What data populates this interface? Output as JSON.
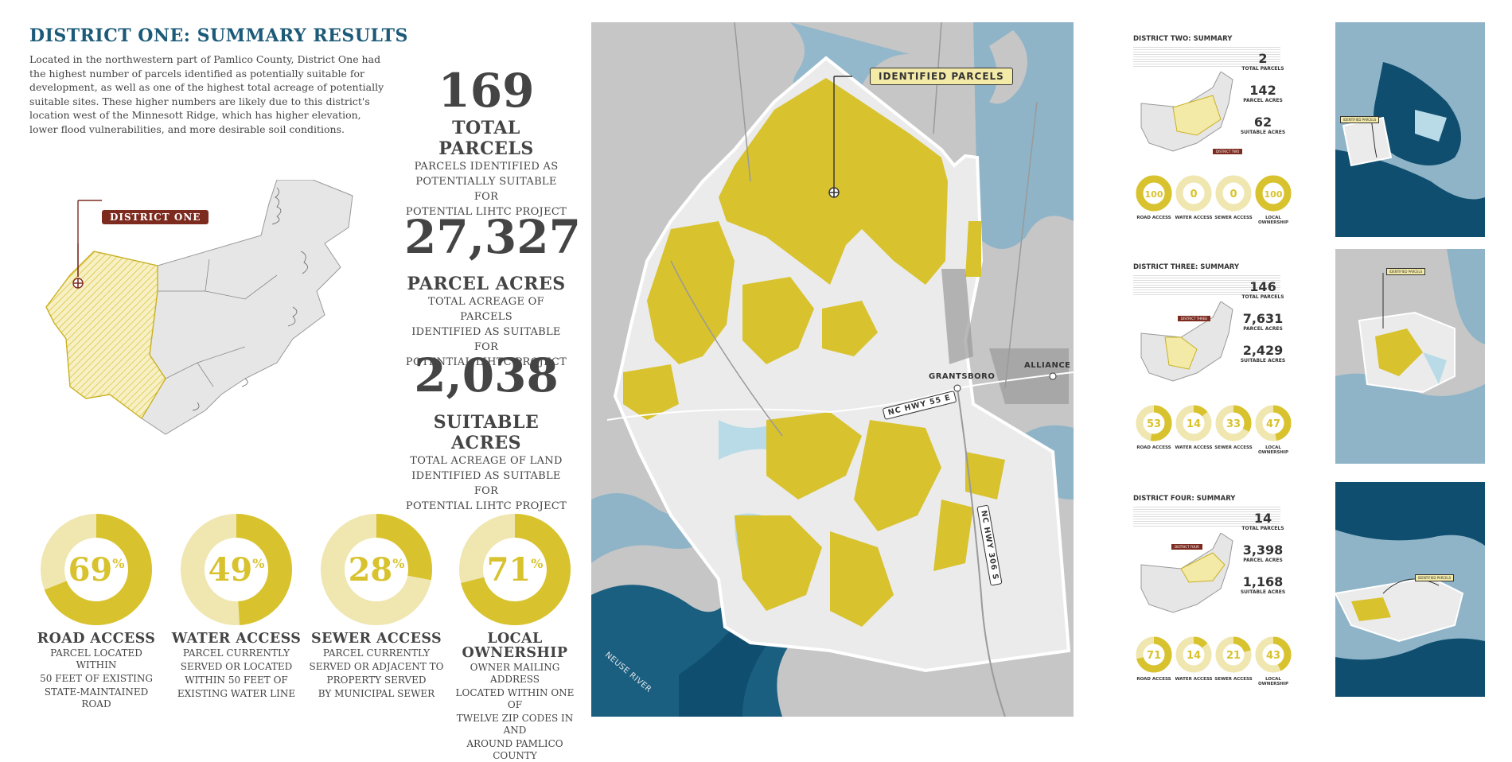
{
  "main": {
    "title": "DISTRICT ONE: SUMMARY RESULTS",
    "intro": "Located in the northwestern part of Pamlico County, District One had the highest number of parcels identified as potentially suitable for development, as well as one of the highest total acreage of potentially suitable sites. These higher numbers are likely due to this district's location west of the Minnesott Ridge, which has higher elevation, lower flood vulnerabilities, and more desirable soil conditions.",
    "locator_label": "DISTRICT ONE"
  },
  "stats": [
    {
      "value": "169",
      "label": "TOTAL PARCELS",
      "sub1": "PARCELS IDENTIFIED AS",
      "sub2": "POTENTIALLY SUITABLE FOR",
      "sub3": "POTENTIAL LIHTC PROJECT"
    },
    {
      "value": "27,327",
      "label": "PARCEL ACRES",
      "sub1": "TOTAL ACREAGE OF PARCELS",
      "sub2": "IDENTIFIED AS SUITABLE FOR",
      "sub3": "POTENTIAL LIHTC PROJECT"
    },
    {
      "value": "2,038",
      "label": "SUITABLE ACRES",
      "sub1": "TOTAL ACREAGE OF LAND",
      "sub2": "IDENTIFIED AS SUITABLE FOR",
      "sub3": "POTENTIAL LIHTC PROJECT"
    }
  ],
  "donuts": [
    {
      "percent": 69,
      "value": "69",
      "unit": "%",
      "label1": "ROAD ACCESS",
      "label2": "",
      "sub1": "PARCEL LOCATED WITHIN",
      "sub2": "50 FEET OF EXISTING",
      "sub3": "STATE-MAINTAINED ROAD",
      "sub4": ""
    },
    {
      "percent": 49,
      "value": "49",
      "unit": "%",
      "label1": "WATER ACCESS",
      "label2": "",
      "sub1": "PARCEL CURRENTLY",
      "sub2": "SERVED OR LOCATED",
      "sub3": "WITHIN 50 FEET OF",
      "sub4": "EXISTING WATER LINE"
    },
    {
      "percent": 28,
      "value": "28",
      "unit": "%",
      "label1": "SEWER ACCESS",
      "label2": "",
      "sub1": "PARCEL CURRENTLY",
      "sub2": "SERVED OR ADJACENT TO",
      "sub3": "PROPERTY SERVED",
      "sub4": "BY MUNICIPAL SEWER"
    },
    {
      "percent": 71,
      "value": "71",
      "unit": "%",
      "label1": "LOCAL",
      "label2": "OWNERSHIP",
      "sub1": "OWNER MAILING ADDRESS",
      "sub2": "LOCATED WITHIN ONE OF",
      "sub3": "TWELVE ZIP CODES IN AND",
      "sub4": "AROUND PAMLICO COUNTY"
    }
  ],
  "map": {
    "callout": "IDENTIFIED PARCELS",
    "towns": [
      "GRANTSBORO",
      "ALLIANCE"
    ],
    "road1": "NC HWY 55 E",
    "road2": "NC HWY 306 S",
    "river": "NEUSE RIVER"
  },
  "colors": {
    "accent": "#d8c22e",
    "accent_light": "#efe6b0",
    "title_blue": "#1b5a78",
    "water_dark": "#0f4e6e",
    "water_light": "#b9dbe8",
    "district_tag": "#7d2a1f"
  },
  "side": [
    {
      "title": "DISTRICT TWO: SUMMARY",
      "tag": "DISTRICT TWO",
      "stats": [
        {
          "value": "2",
          "label": "TOTAL PARCELS"
        },
        {
          "value": "142",
          "label": "PARCEL ACRES"
        },
        {
          "value": "62",
          "label": "SUITABLE ACRES"
        }
      ],
      "donuts": [
        {
          "percent": 100,
          "value": "100"
        },
        {
          "percent": 0,
          "value": "0"
        },
        {
          "percent": 0,
          "value": "0"
        },
        {
          "percent": 100,
          "value": "100"
        }
      ],
      "map_tag": "IDENTIFIED PARCELS"
    },
    {
      "title": "DISTRICT THREE: SUMMARY",
      "tag": "DISTRICT THREE",
      "stats": [
        {
          "value": "146",
          "label": "TOTAL PARCELS"
        },
        {
          "value": "7,631",
          "label": "PARCEL ACRES"
        },
        {
          "value": "2,429",
          "label": "SUITABLE ACRES"
        }
      ],
      "donuts": [
        {
          "percent": 53,
          "value": "53"
        },
        {
          "percent": 14,
          "value": "14"
        },
        {
          "percent": 33,
          "value": "33"
        },
        {
          "percent": 47,
          "value": "47"
        }
      ],
      "map_tag": "IDENTIFIED PARCELS"
    },
    {
      "title": "DISTRICT FOUR: SUMMARY",
      "tag": "DISTRICT FOUR",
      "stats": [
        {
          "value": "14",
          "label": "TOTAL PARCELS"
        },
        {
          "value": "3,398",
          "label": "PARCEL ACRES"
        },
        {
          "value": "1,168",
          "label": "SUITABLE ACRES"
        }
      ],
      "donuts": [
        {
          "percent": 71,
          "value": "71"
        },
        {
          "percent": 14,
          "value": "14"
        },
        {
          "percent": 21,
          "value": "21"
        },
        {
          "percent": 43,
          "value": "43"
        }
      ],
      "map_tag": "IDENTIFIED PARCELS"
    }
  ],
  "side_donut_labels": [
    "ROAD ACCESS",
    "WATER ACCESS",
    "SEWER ACCESS",
    "LOCAL OWNERSHIP"
  ]
}
